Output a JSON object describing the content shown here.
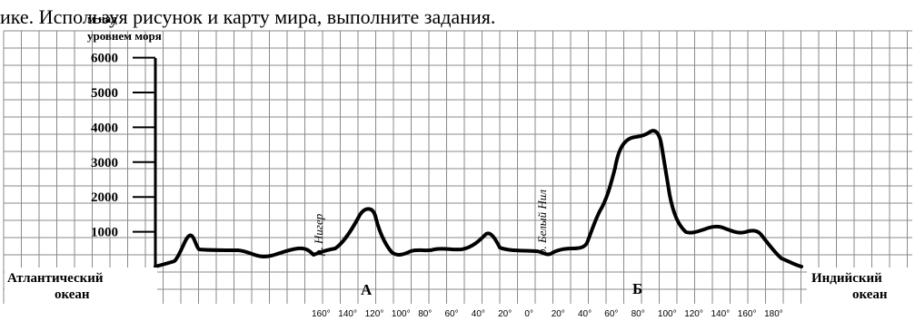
{
  "header_text": "ике. Используя рисунок и карту мира, выполните задания.",
  "y_axis": {
    "title_line1": "м над",
    "title_line2": "уровнем моря",
    "ticks": [
      1000,
      2000,
      3000,
      4000,
      5000,
      6000
    ]
  },
  "rivers": {
    "niger": "р. Нигер",
    "white_nile": "р. Белый Нил"
  },
  "oceans": {
    "left_line1": "Атлантический",
    "left_line2": "океан",
    "right_line1": "Индийский",
    "right_line2": "океан"
  },
  "points": {
    "a": "А",
    "b": "Б"
  },
  "x_axis_ticks": [
    "160°",
    "140°",
    "120°",
    "100°",
    "80°",
    "60°",
    "40°",
    "20°",
    "0°",
    "20°",
    "40°",
    "60°",
    "80°",
    "100°",
    "120°",
    "140°",
    "160°",
    "180°"
  ],
  "colors": {
    "grid": "#8a8a8a",
    "profile": "#000000",
    "background": "#ffffff"
  }
}
